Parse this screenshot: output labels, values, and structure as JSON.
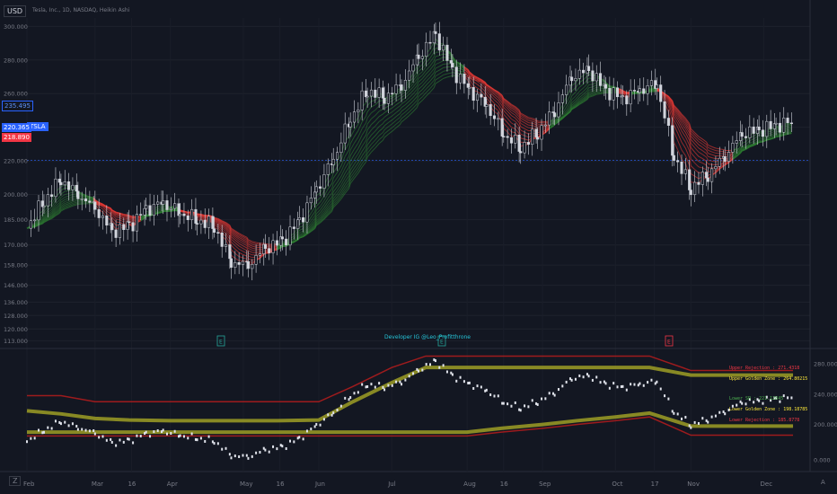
{
  "header": {
    "currency": "USD",
    "symbol_line": "Tesla, Inc., 1D, NASDAQ, Heikin Ashi"
  },
  "price_labels": {
    "symbol_badge": "TSLA",
    "last": "220.365",
    "prev": "218.890",
    "top": "235.495"
  },
  "developer_note": "Developer IG @Leo_Profitthrone",
  "buttons": {
    "zoom": "Z",
    "auto": "A"
  },
  "zones": [
    {
      "label": "Upper Rejection :",
      "value": "271.4318",
      "color": "#f23645"
    },
    {
      "label": "Upper Golden Zone :",
      "value": "264.80215",
      "color": "#ffeb3b"
    },
    {
      "label": "Lower SR :",
      "value": "221.12845",
      "color": "#4caf50"
    },
    {
      "label": "Lower Golden Zone :",
      "value": "198.18785",
      "color": "#ffeb3b"
    },
    {
      "label": "Lower Rejection :",
      "value": "185.8778",
      "color": "#f23645"
    }
  ],
  "colors": {
    "background": "#131722",
    "bull_ribbon": "#2e7d32",
    "bear_ribbon": "#e53935",
    "candle": "#d1d4dc",
    "accent": "#2962ff"
  },
  "chart_data": [
    {
      "type": "line",
      "panel": "price (Heikin Ashi candles with moving-average ribbon)",
      "x_ticks": [
        "Feb",
        "Mar",
        "16",
        "Apr",
        "May",
        "16",
        "Jun",
        "Jul",
        "Aug",
        "16",
        "Sep",
        "Oct",
        "17",
        "Nov",
        "Dec"
      ],
      "y_ticks": [
        113.0,
        120.0,
        128.0,
        136.0,
        146.0,
        158.0,
        170.0,
        185.0,
        200.0,
        220.0,
        240.0,
        260.0,
        280.0,
        300.0
      ],
      "ylim": [
        110,
        305
      ],
      "x": [
        "2023-02-01",
        "2023-02-08",
        "2023-02-15",
        "2023-02-22",
        "2023-03-01",
        "2023-03-08",
        "2023-03-15",
        "2023-03-22",
        "2023-03-29",
        "2023-04-05",
        "2023-04-12",
        "2023-04-19",
        "2023-04-26",
        "2023-05-03",
        "2023-05-10",
        "2023-05-17",
        "2023-05-24",
        "2023-05-31",
        "2023-06-07",
        "2023-06-14",
        "2023-06-21",
        "2023-06-28",
        "2023-07-05",
        "2023-07-12",
        "2023-07-19",
        "2023-07-26",
        "2023-08-02",
        "2023-08-09",
        "2023-08-16",
        "2023-08-23",
        "2023-08-30",
        "2023-09-06",
        "2023-09-13",
        "2023-09-20",
        "2023-09-27",
        "2023-10-04",
        "2023-10-11",
        "2023-10-18",
        "2023-10-25",
        "2023-11-01",
        "2023-11-08",
        "2023-11-15",
        "2023-11-22",
        "2023-11-29",
        "2023-12-06",
        "2023-12-13"
      ],
      "series": [
        {
          "name": "Close",
          "values": [
            181,
            196,
            209,
            200,
            192,
            178,
            181,
            191,
            195,
            189,
            185,
            181,
            160,
            158,
            168,
            172,
            184,
            203,
            221,
            245,
            262,
            258,
            265,
            282,
            295,
            274,
            262,
            253,
            236,
            228,
            237,
            250,
            270,
            274,
            262,
            257,
            262,
            266,
            223,
            204,
            212,
            223,
            236,
            238,
            241,
            243
          ]
        }
      ]
    },
    {
      "type": "line",
      "panel": "oscillator",
      "y_ticks": [
        0.0,
        200.0,
        240.0,
        280.0
      ],
      "x": [
        "2023-02-01",
        "2023-02-15",
        "2023-03-01",
        "2023-03-15",
        "2023-04-01",
        "2023-04-15",
        "2023-05-01",
        "2023-05-15",
        "2023-06-01",
        "2023-06-15",
        "2023-07-01",
        "2023-07-15",
        "2023-08-01",
        "2023-08-15",
        "2023-09-01",
        "2023-09-15",
        "2023-10-01",
        "2023-10-15",
        "2023-11-01",
        "2023-11-15",
        "2023-12-01",
        "2023-12-13"
      ],
      "series": [
        {
          "name": "Upper Rejection",
          "values": [
            238,
            238,
            230,
            230,
            230,
            230,
            230,
            230,
            230,
            250,
            275,
            290,
            290,
            290,
            290,
            290,
            290,
            290,
            271,
            271,
            271,
            271
          ]
        },
        {
          "name": "Upper Golden Zone",
          "values": [
            218,
            214,
            208,
            206,
            205,
            205,
            205,
            205,
            206,
            230,
            255,
            275,
            275,
            275,
            275,
            275,
            275,
            275,
            265,
            265,
            265,
            265
          ]
        },
        {
          "name": "Lower Golden Zone",
          "values": [
            190,
            190,
            190,
            190,
            190,
            190,
            190,
            190,
            190,
            190,
            190,
            190,
            190,
            195,
            200,
            205,
            210,
            215,
            198,
            198,
            198,
            198
          ]
        },
        {
          "name": "Lower Rejection",
          "values": [
            185,
            185,
            185,
            185,
            185,
            185,
            185,
            185,
            185,
            185,
            185,
            185,
            185,
            190,
            195,
            200,
            205,
            210,
            186,
            186,
            186,
            186
          ]
        }
      ]
    }
  ]
}
